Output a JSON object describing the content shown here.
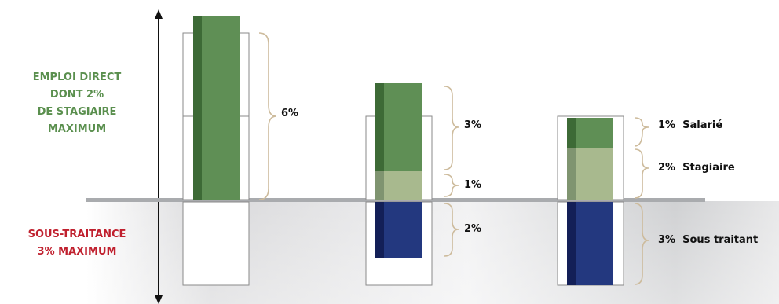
{
  "labels": {
    "direct_line1": "EMPLOI DIRECT",
    "direct_line2": "DONT 2%",
    "direct_line3": "DE STAGIAIRE",
    "direct_line4": "MAXIMUM",
    "sous_line1": "SOUS-TRAITANCE",
    "sous_line2": "3% MAXIMUM"
  },
  "columns": [
    {
      "brackets": [
        "6%"
      ]
    },
    {
      "brackets": [
        "3%",
        "1%",
        "2%"
      ]
    },
    {
      "brackets": [
        "1%",
        "2%",
        "3%"
      ],
      "names": [
        "Salarié",
        "Stagiaire",
        "Sous traitant"
      ]
    }
  ],
  "colors": {
    "green": "#5f8f55",
    "green_dark": "#3d6a36",
    "green_light": "#a8b98e",
    "green_light_dark": "#7f9470",
    "blue": "#23387f",
    "blue_dark": "#131f57",
    "label_green": "#5a8f4e",
    "label_red": "#c0202e",
    "bracket": "#cdbb9c",
    "baseline": "#a9abae"
  }
}
